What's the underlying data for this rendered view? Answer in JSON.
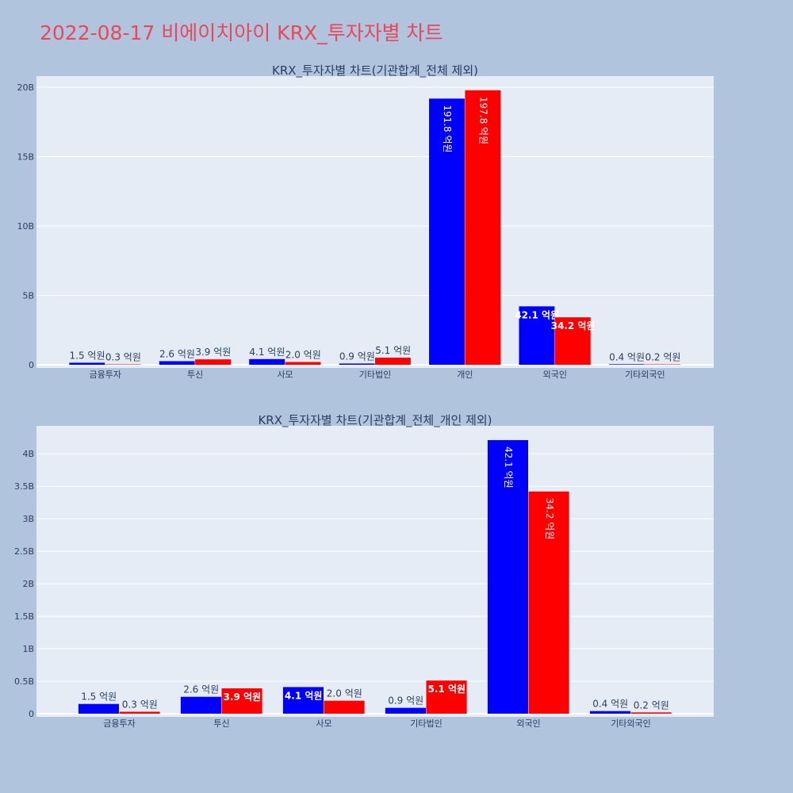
{
  "title": "2022-08-17 비에이치아이 KRX_투자자별 차트",
  "colors": {
    "background": "#b0c4de",
    "plot_bg": "#e5ecf6",
    "title": "#e8485a",
    "series_a": "#0000ff",
    "series_b": "#ff0000"
  },
  "chart_data": [
    {
      "type": "bar",
      "title": "KRX_투자자별 차트(기관합계_전체 제외)",
      "categories": [
        "금융투자",
        "투신",
        "사모",
        "기타법인",
        "개인",
        "외국인",
        "기타외국인"
      ],
      "series": [
        {
          "color": "#0000ff",
          "values": [
            150000000,
            260000000,
            410000000,
            90000000,
            19180000000,
            4210000000,
            40000000
          ],
          "labels": [
            "1.5 억원",
            "2.6 억원",
            "4.1 억원",
            "0.9 억원",
            "191.8 억원",
            "42.1 억원",
            "0.4 억원"
          ]
        },
        {
          "color": "#ff0000",
          "values": [
            30000000,
            390000000,
            200000000,
            510000000,
            19780000000,
            3420000000,
            20000000
          ],
          "labels": [
            "0.3 억원",
            "3.9 억원",
            "2.0 억원",
            "5.1 억원",
            "197.8 억원",
            "34.2 억원",
            "0.2 억원"
          ]
        }
      ],
      "ylim": [
        0,
        20800000000
      ],
      "yticks": [
        0,
        5000000000,
        10000000000,
        15000000000,
        20000000000
      ],
      "ytick_labels": [
        "0",
        "5B",
        "10B",
        "15B",
        "20B"
      ],
      "grid": true
    },
    {
      "type": "bar",
      "title": "KRX_투자자별 차트(기관합계_전체_개인 제외)",
      "categories": [
        "금융투자",
        "투신",
        "사모",
        "기타법인",
        "외국인",
        "기타외국인"
      ],
      "series": [
        {
          "color": "#0000ff",
          "values": [
            150000000,
            260000000,
            410000000,
            90000000,
            4210000000,
            40000000
          ],
          "labels": [
            "1.5 억원",
            "2.6 억원",
            "4.1 억원",
            "0.9 억원",
            "42.1 억원",
            "0.4 억원"
          ]
        },
        {
          "color": "#ff0000",
          "values": [
            30000000,
            390000000,
            200000000,
            510000000,
            3420000000,
            20000000
          ],
          "labels": [
            "0.3 억원",
            "3.9 억원",
            "2.0 억원",
            "5.1 억원",
            "34.2 억원",
            "0.2 억원"
          ]
        }
      ],
      "ylim": [
        0,
        4430000000
      ],
      "yticks": [
        0,
        500000000,
        1000000000,
        1500000000,
        2000000000,
        2500000000,
        3000000000,
        3500000000,
        4000000000
      ],
      "ytick_labels": [
        "0",
        "0.5B",
        "1B",
        "1.5B",
        "2B",
        "2.5B",
        "3B",
        "3.5B",
        "4B"
      ],
      "grid": true
    }
  ]
}
